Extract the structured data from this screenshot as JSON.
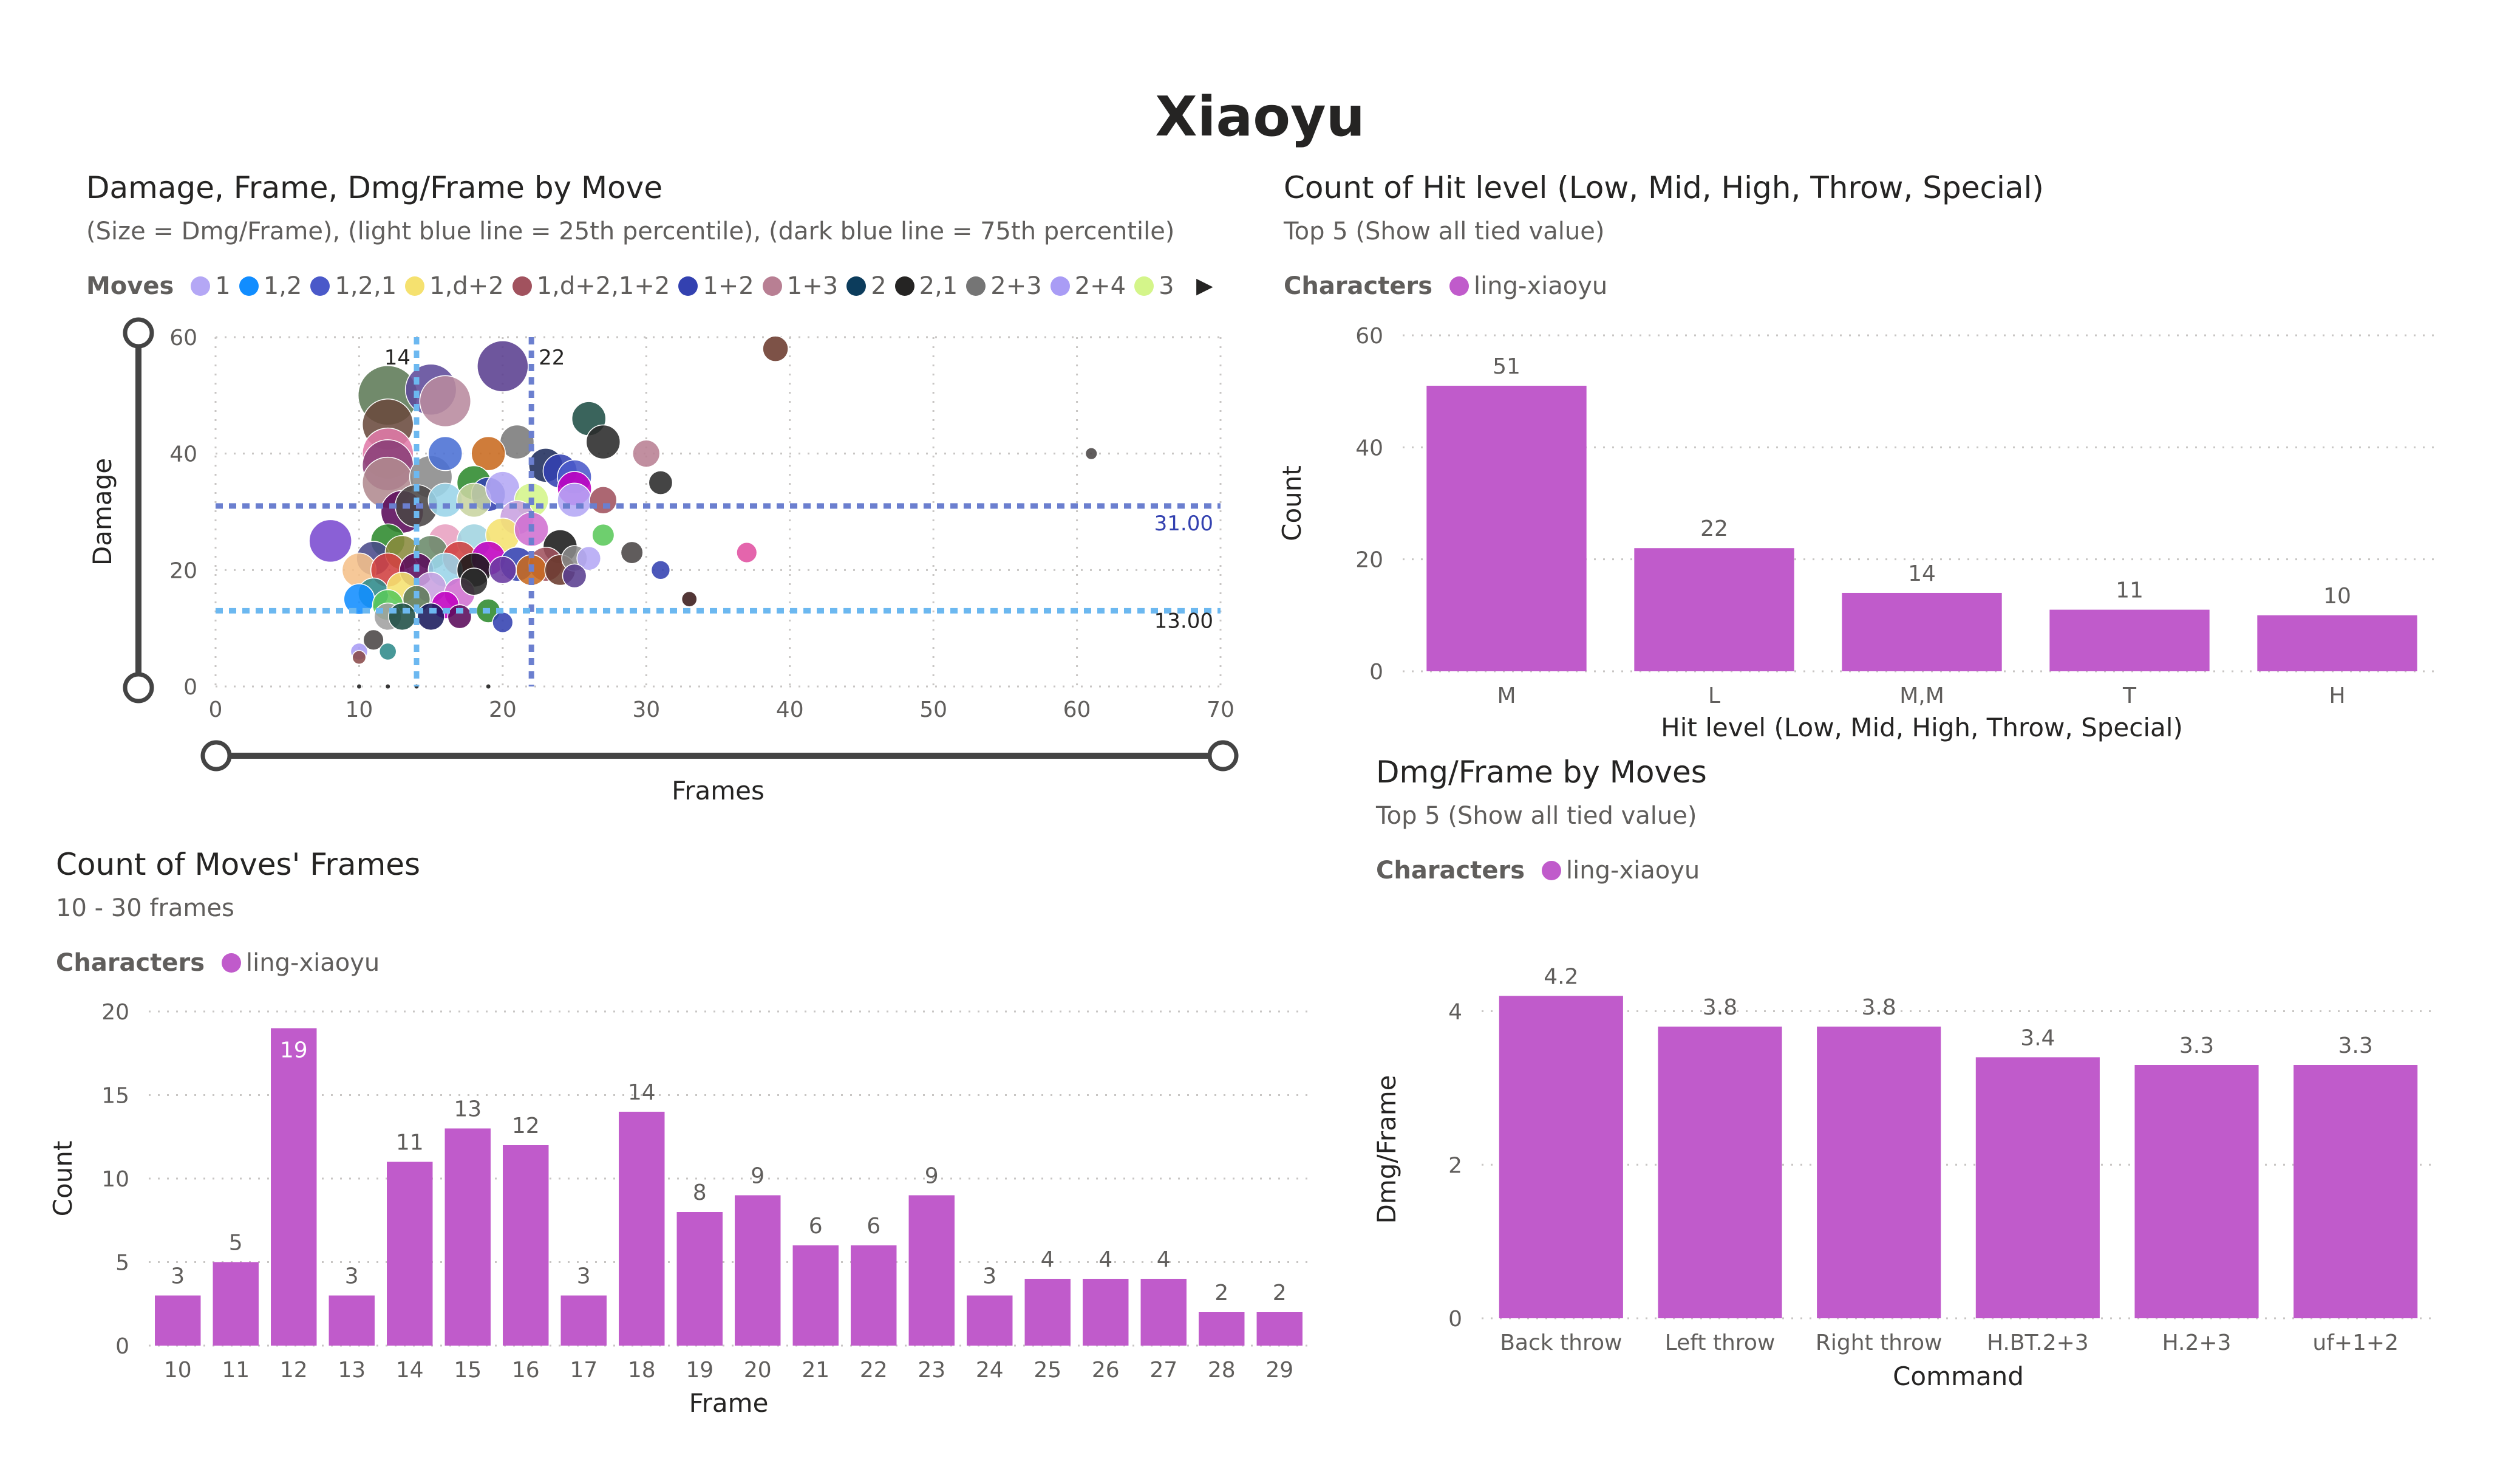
{
  "page": {
    "title": "Xiaoyu"
  },
  "scatter": {
    "title": "Damage, Frame, Dmg/Frame by Move",
    "subtitle": "(Size = Dmg/Frame), (light blue line = 25th percentile), (dark blue line = 75th percentile)",
    "legend_title": "Moves",
    "legend_more_icon": "triangle-right-icon",
    "legend": [
      {
        "name": "1",
        "color": "#b4a7f5"
      },
      {
        "name": "1,2",
        "color": "#118dff"
      },
      {
        "name": "1,2,1",
        "color": "#4a59c9"
      },
      {
        "name": "1,d+2",
        "color": "#f5e16f"
      },
      {
        "name": "1,d+2,1+2",
        "color": "#a1525e"
      },
      {
        "name": "1+2",
        "color": "#3341b0"
      },
      {
        "name": "1+3",
        "color": "#b87f93"
      },
      {
        "name": "2",
        "color": "#0c3c5c"
      },
      {
        "name": "2,1",
        "color": "#252423"
      },
      {
        "name": "2+3",
        "color": "#757575"
      },
      {
        "name": "2+4",
        "color": "#a99cf5"
      },
      {
        "name": "3",
        "color": "#d4f58a"
      }
    ]
  },
  "hitlevel": {
    "title": "Count of Hit level (Low, Mid, High, Throw, Special)",
    "subtitle": "Top 5 (Show all tied value)",
    "legend_title": "Characters",
    "legend_item": "ling-xiaoyu",
    "color": "#c05bcb"
  },
  "frames": {
    "title": "Count of Moves' Frames",
    "subtitle": "10 - 30 frames",
    "legend_title": "Characters",
    "legend_item": "ling-xiaoyu",
    "color": "#c05bcb"
  },
  "dmgframe": {
    "title": "Dmg/Frame by Moves",
    "subtitle": "Top 5 (Show all tied value)",
    "legend_title": "Characters",
    "legend_item": "ling-xiaoyu",
    "color": "#c05bcb"
  },
  "chart_data": [
    {
      "id": "scatter",
      "type": "scatter",
      "xlabel": "Frames",
      "ylabel": "Damage",
      "xlim": [
        0,
        70
      ],
      "ylim": [
        0,
        60
      ],
      "xticks": [
        0,
        10,
        20,
        30,
        40,
        50,
        60,
        70
      ],
      "yticks": [
        0,
        20,
        40,
        60
      ],
      "grid": true,
      "reference_lines": [
        {
          "axis": "x",
          "value": 14,
          "label": "14",
          "style": "light"
        },
        {
          "axis": "x",
          "value": 22,
          "label": "22",
          "style": "dark"
        },
        {
          "axis": "y",
          "value": 31,
          "label": "31.00",
          "style": "dark"
        },
        {
          "axis": "y",
          "value": 13,
          "label": "13.00",
          "style": "light"
        }
      ],
      "points": [
        {
          "x": 39,
          "y": 58,
          "r": 1.5,
          "color": "#6b3a2e"
        },
        {
          "x": 61,
          "y": 40,
          "r": 0.7,
          "color": "#4a4646"
        },
        {
          "x": 20,
          "y": 55,
          "r": 3.0,
          "color": "#5a3f8f"
        },
        {
          "x": 12,
          "y": 50,
          "r": 3.5,
          "color": "#5d7a57"
        },
        {
          "x": 15,
          "y": 51,
          "r": 3.0,
          "color": "#5e4a9a"
        },
        {
          "x": 16,
          "y": 49,
          "r": 3.0,
          "color": "#b88a9e"
        },
        {
          "x": 12,
          "y": 45,
          "r": 3.0,
          "color": "#6a4a3e"
        },
        {
          "x": 26,
          "y": 46,
          "r": 2.0,
          "color": "#1f4f45"
        },
        {
          "x": 27,
          "y": 42,
          "r": 2.0,
          "color": "#2a2a2a"
        },
        {
          "x": 21,
          "y": 42,
          "r": 2.0,
          "color": "#7a7a7a"
        },
        {
          "x": 19,
          "y": 40,
          "r": 2.0,
          "color": "#c86a1f"
        },
        {
          "x": 16,
          "y": 40,
          "r": 2.0,
          "color": "#4a70d4"
        },
        {
          "x": 12,
          "y": 40,
          "r": 3.0,
          "color": "#e07aa8"
        },
        {
          "x": 12,
          "y": 38,
          "r": 3.0,
          "color": "#8a3f78"
        },
        {
          "x": 12,
          "y": 35,
          "r": 3.0,
          "color": "#b08a90"
        },
        {
          "x": 15,
          "y": 36,
          "r": 2.5,
          "color": "#8a8a8a"
        },
        {
          "x": 30,
          "y": 40,
          "r": 1.6,
          "color": "#b87f93"
        },
        {
          "x": 23,
          "y": 38,
          "r": 2.0,
          "color": "#1f2e5c"
        },
        {
          "x": 24,
          "y": 37,
          "r": 2.0,
          "color": "#3341b0"
        },
        {
          "x": 25,
          "y": 36,
          "r": 2.0,
          "color": "#4a59c9"
        },
        {
          "x": 31,
          "y": 35,
          "r": 1.4,
          "color": "#2a2a2a"
        },
        {
          "x": 18,
          "y": 35,
          "r": 2.0,
          "color": "#2e8a2e"
        },
        {
          "x": 19,
          "y": 33,
          "r": 2.0,
          "color": "#3341b0"
        },
        {
          "x": 16,
          "y": 32,
          "r": 2.0,
          "color": "#9ad4e8"
        },
        {
          "x": 18,
          "y": 32,
          "r": 2.0,
          "color": "#c8d4a0"
        },
        {
          "x": 20,
          "y": 34,
          "r": 2.0,
          "color": "#b4a7f5"
        },
        {
          "x": 22,
          "y": 32,
          "r": 2.0,
          "color": "#d4f58a"
        },
        {
          "x": 25,
          "y": 34,
          "r": 2.0,
          "color": "#c000c0"
        },
        {
          "x": 25,
          "y": 32,
          "r": 2.0,
          "color": "#b4a7f5"
        },
        {
          "x": 27,
          "y": 32,
          "r": 1.6,
          "color": "#a1525e"
        },
        {
          "x": 13,
          "y": 30,
          "r": 2.5,
          "color": "#5a0a5a"
        },
        {
          "x": 14,
          "y": 31,
          "r": 2.5,
          "color": "#4a4646"
        },
        {
          "x": 21,
          "y": 29,
          "r": 2.0,
          "color": "#c8a0e0"
        },
        {
          "x": 8,
          "y": 25,
          "r": 2.5,
          "color": "#7a4ad0"
        },
        {
          "x": 12,
          "y": 25,
          "r": 2.0,
          "color": "#2e8a2e"
        },
        {
          "x": 16,
          "y": 25,
          "r": 2.0,
          "color": "#e8a0c0"
        },
        {
          "x": 18,
          "y": 25,
          "r": 2.0,
          "color": "#a0d4e0"
        },
        {
          "x": 20,
          "y": 26,
          "r": 2.0,
          "color": "#f5e16f"
        },
        {
          "x": 22,
          "y": 27,
          "r": 2.0,
          "color": "#d070d0"
        },
        {
          "x": 24,
          "y": 24,
          "r": 2.0,
          "color": "#1a1a1a"
        },
        {
          "x": 27,
          "y": 26,
          "r": 1.3,
          "color": "#5ac85a"
        },
        {
          "x": 11,
          "y": 22,
          "r": 2.0,
          "color": "#4a4a8a"
        },
        {
          "x": 13,
          "y": 23,
          "r": 2.0,
          "color": "#8a8a3e"
        },
        {
          "x": 15,
          "y": 23,
          "r": 2.0,
          "color": "#6a8a6a"
        },
        {
          "x": 17,
          "y": 22,
          "r": 2.0,
          "color": "#d04040"
        },
        {
          "x": 19,
          "y": 22,
          "r": 2.0,
          "color": "#c000c0"
        },
        {
          "x": 21,
          "y": 21,
          "r": 2.0,
          "color": "#3341b0"
        },
        {
          "x": 23,
          "y": 21,
          "r": 2.0,
          "color": "#a1525e"
        },
        {
          "x": 25,
          "y": 22,
          "r": 1.5,
          "color": "#8a8a8a"
        },
        {
          "x": 26,
          "y": 22,
          "r": 1.4,
          "color": "#b4a7f5"
        },
        {
          "x": 29,
          "y": 23,
          "r": 1.3,
          "color": "#4a4646"
        },
        {
          "x": 37,
          "y": 23,
          "r": 1.2,
          "color": "#e050a0"
        },
        {
          "x": 10,
          "y": 20,
          "r": 2.0,
          "color": "#f5c08a"
        },
        {
          "x": 12,
          "y": 20,
          "r": 2.0,
          "color": "#d04040"
        },
        {
          "x": 14,
          "y": 20,
          "r": 2.0,
          "color": "#5a0a5a"
        },
        {
          "x": 16,
          "y": 20,
          "r": 2.0,
          "color": "#9ad4e8"
        },
        {
          "x": 18,
          "y": 20,
          "r": 2.0,
          "color": "#1a1a1a"
        },
        {
          "x": 20,
          "y": 20,
          "r": 1.6,
          "color": "#6a3aa0"
        },
        {
          "x": 22,
          "y": 20,
          "r": 1.8,
          "color": "#c86a1f"
        },
        {
          "x": 24,
          "y": 20,
          "r": 1.8,
          "color": "#6a3a2e"
        },
        {
          "x": 25,
          "y": 19,
          "r": 1.4,
          "color": "#5a3f8f"
        },
        {
          "x": 31,
          "y": 20,
          "r": 1.1,
          "color": "#3341b0"
        },
        {
          "x": 11,
          "y": 16,
          "r": 1.8,
          "color": "#2e8a8a"
        },
        {
          "x": 13,
          "y": 17,
          "r": 1.8,
          "color": "#f5e16f"
        },
        {
          "x": 15,
          "y": 17,
          "r": 1.8,
          "color": "#c8a0e0"
        },
        {
          "x": 17,
          "y": 16,
          "r": 1.8,
          "color": "#d070d0"
        },
        {
          "x": 18,
          "y": 18,
          "r": 1.6,
          "color": "#2a2a2a"
        },
        {
          "x": 10,
          "y": 15,
          "r": 1.8,
          "color": "#118dff"
        },
        {
          "x": 12,
          "y": 14,
          "r": 1.8,
          "color": "#5ac85a"
        },
        {
          "x": 14,
          "y": 15,
          "r": 1.6,
          "color": "#5d7a57"
        },
        {
          "x": 16,
          "y": 14,
          "r": 1.6,
          "color": "#c000c0"
        },
        {
          "x": 19,
          "y": 13,
          "r": 1.4,
          "color": "#2e8a2e"
        },
        {
          "x": 33,
          "y": 15,
          "r": 0.9,
          "color": "#3a1a1a"
        },
        {
          "x": 12,
          "y": 12,
          "r": 1.6,
          "color": "#a0a0a0"
        },
        {
          "x": 13,
          "y": 12,
          "r": 1.6,
          "color": "#1f4f45"
        },
        {
          "x": 15,
          "y": 12,
          "r": 1.6,
          "color": "#1a1a5c"
        },
        {
          "x": 17,
          "y": 12,
          "r": 1.4,
          "color": "#5a0a5a"
        },
        {
          "x": 20,
          "y": 11,
          "r": 1.2,
          "color": "#3341b0"
        },
        {
          "x": 11,
          "y": 8,
          "r": 1.2,
          "color": "#4a4646"
        },
        {
          "x": 12,
          "y": 6,
          "r": 1.0,
          "color": "#2e8a8a"
        },
        {
          "x": 10,
          "y": 6,
          "r": 1.0,
          "color": "#a99cf5"
        },
        {
          "x": 10,
          "y": 5,
          "r": 0.8,
          "color": "#8a4a4a"
        },
        {
          "x": 10,
          "y": 0,
          "r": 0.3,
          "color": "#1a1a1a"
        },
        {
          "x": 12,
          "y": 0,
          "r": 0.3,
          "color": "#1a1a1a"
        },
        {
          "x": 14,
          "y": 0,
          "r": 0.3,
          "color": "#1a1a1a"
        },
        {
          "x": 19,
          "y": 0,
          "r": 0.3,
          "color": "#1a1a1a"
        }
      ]
    },
    {
      "id": "hitlevel",
      "type": "bar",
      "categories": [
        "M",
        "L",
        "M,M",
        "T",
        "H"
      ],
      "values": [
        51,
        22,
        14,
        11,
        10
      ],
      "xlabel": "Hit level (Low, Mid, High, Throw, Special)",
      "ylabel": "Count",
      "ylim": [
        0,
        60
      ],
      "yticks": [
        0,
        20,
        40,
        60
      ],
      "data_labels": true
    },
    {
      "id": "frames",
      "type": "bar",
      "categories": [
        "10",
        "11",
        "12",
        "13",
        "14",
        "15",
        "16",
        "17",
        "18",
        "19",
        "20",
        "21",
        "22",
        "23",
        "24",
        "25",
        "26",
        "27",
        "28",
        "29"
      ],
      "values": [
        3,
        5,
        19,
        3,
        11,
        13,
        12,
        3,
        14,
        8,
        9,
        6,
        6,
        9,
        3,
        4,
        4,
        4,
        2,
        2
      ],
      "xlabel": "Frame",
      "ylabel": "Count",
      "ylim": [
        0,
        20
      ],
      "yticks": [
        0,
        5,
        10,
        15,
        20
      ],
      "data_labels": true
    },
    {
      "id": "dmgframe",
      "type": "bar",
      "categories": [
        "Back throw",
        "Left throw",
        "Right throw",
        "H.BT.2+3",
        "H.2+3",
        "uf+1+2"
      ],
      "values": [
        4.2,
        3.8,
        3.8,
        3.4,
        3.3,
        3.3
      ],
      "xlabel": "Command",
      "ylabel": "Dmg/Frame",
      "ylim": [
        0,
        4.4
      ],
      "yticks": [
        0,
        2,
        4
      ],
      "data_labels": true
    }
  ]
}
